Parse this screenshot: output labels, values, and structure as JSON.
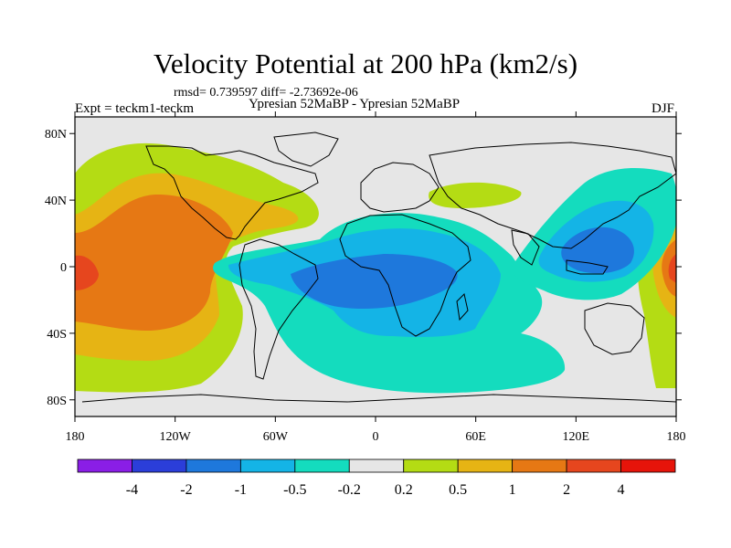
{
  "title": "Velocity Potential at 200 hPa (km2/s)",
  "stats": "rmsd= 0.739597 diff= -2.73692e-06",
  "expt": "Expt = teckm1-teckm",
  "subtitle": "Ypresian  52MaBP - Ypresian  52MaBP",
  "season": "DJF",
  "lat_labels": [
    "80N",
    "40N",
    "0",
    "40S",
    "80S"
  ],
  "lat_values": [
    80,
    40,
    0,
    -40,
    -80
  ],
  "lon_labels": [
    "180",
    "120W",
    "60W",
    "0",
    "60E",
    "120E",
    "180"
  ],
  "lon_values": [
    -180,
    -120,
    -60,
    0,
    60,
    120,
    180
  ],
  "colorbar": {
    "levels": [
      "-4",
      "-2",
      "-1",
      "-0.5",
      "-0.2",
      "0.2",
      "0.5",
      "1",
      "2",
      "4"
    ],
    "colors": [
      "#8a1ee6",
      "#2b3ed9",
      "#1e78dc",
      "#14b4e6",
      "#14dcbe",
      "#e6e6e6",
      "#b4dc14",
      "#e6b414",
      "#e67814",
      "#e6461e",
      "#e6140a"
    ]
  },
  "colors": {
    "c_neg1": "#1e78dc",
    "c_neg05": "#14b4e6",
    "c_neg02": "#14dcbe",
    "c_zero": "#e6e6e6",
    "c_pos02": "#b4dc14",
    "c_pos05": "#e6b414",
    "c_pos1": "#e67814",
    "c_pos2": "#e6461e"
  }
}
